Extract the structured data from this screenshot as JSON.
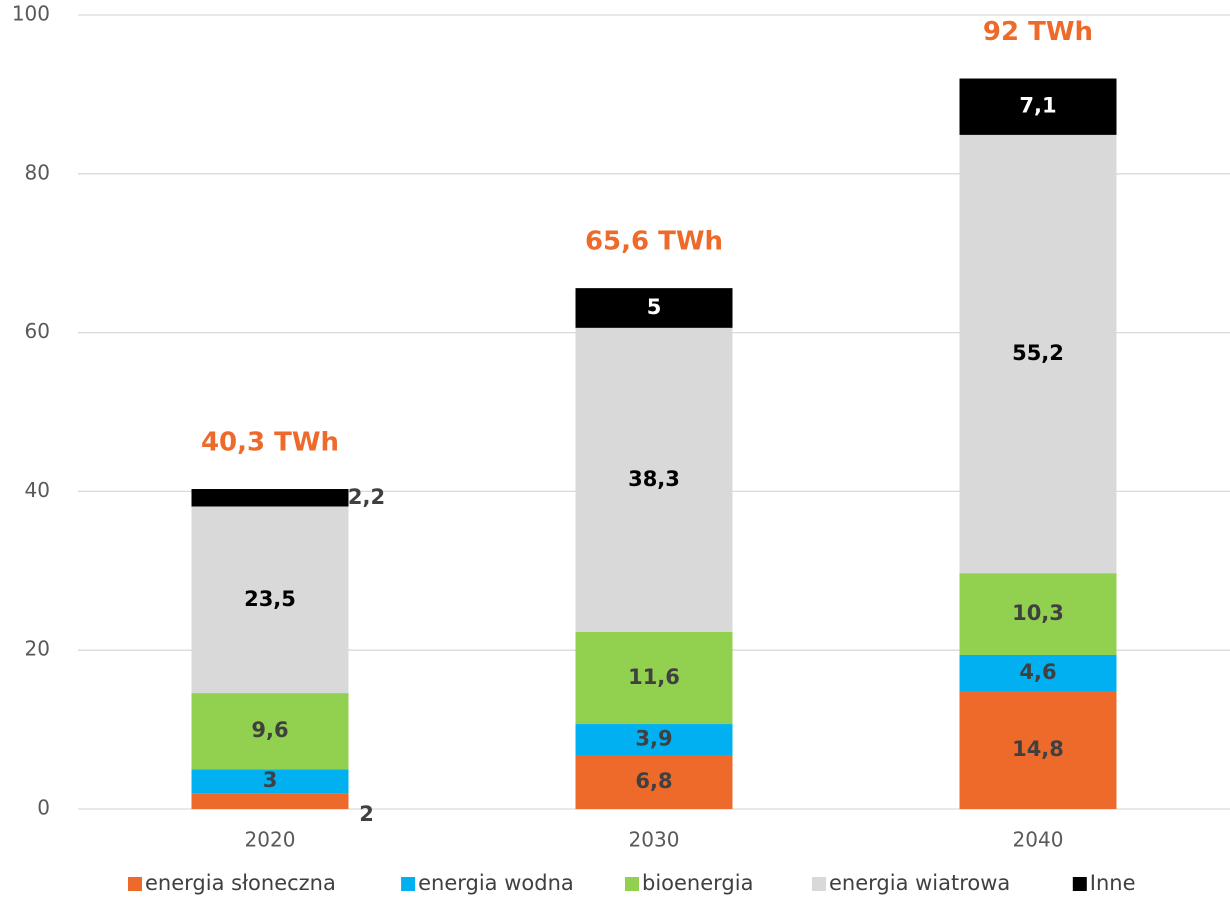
{
  "chart_data": {
    "type": "stacked_bar",
    "categories": [
      "2020",
      "2030",
      "2040"
    ],
    "series": [
      {
        "name": "energia słoneczna",
        "color": "#ee6a2a",
        "values": [
          2,
          6.8,
          14.8
        ],
        "value_labels": [
          "2",
          "6,8",
          "14,8"
        ]
      },
      {
        "name": "energia wodna",
        "color": "#00b0f0",
        "values": [
          3,
          3.9,
          4.6
        ],
        "value_labels": [
          "3",
          "3,9",
          "4,6"
        ]
      },
      {
        "name": "bioenergia",
        "color": "#92d050",
        "values": [
          9.6,
          11.6,
          10.3
        ],
        "value_labels": [
          "9,6",
          "11,6",
          "10,3"
        ]
      },
      {
        "name": "energia wiatrowa",
        "color": "#d9d9d9",
        "values": [
          23.5,
          38.3,
          55.2
        ],
        "value_labels": [
          "23,5",
          "38,3",
          "55,2"
        ]
      },
      {
        "name": "Inne",
        "color": "#000000",
        "values": [
          2.2,
          5,
          7.1
        ],
        "value_labels": [
          "2,2",
          "5",
          "7,1"
        ]
      }
    ],
    "total_labels": [
      "40,3 TWh",
      "65,6 TWh",
      "92 TWh"
    ],
    "ylim": [
      0,
      100
    ],
    "yticks": [
      0,
      20,
      40,
      60,
      80,
      100
    ],
    "grid": true,
    "legend": "bottom"
  }
}
